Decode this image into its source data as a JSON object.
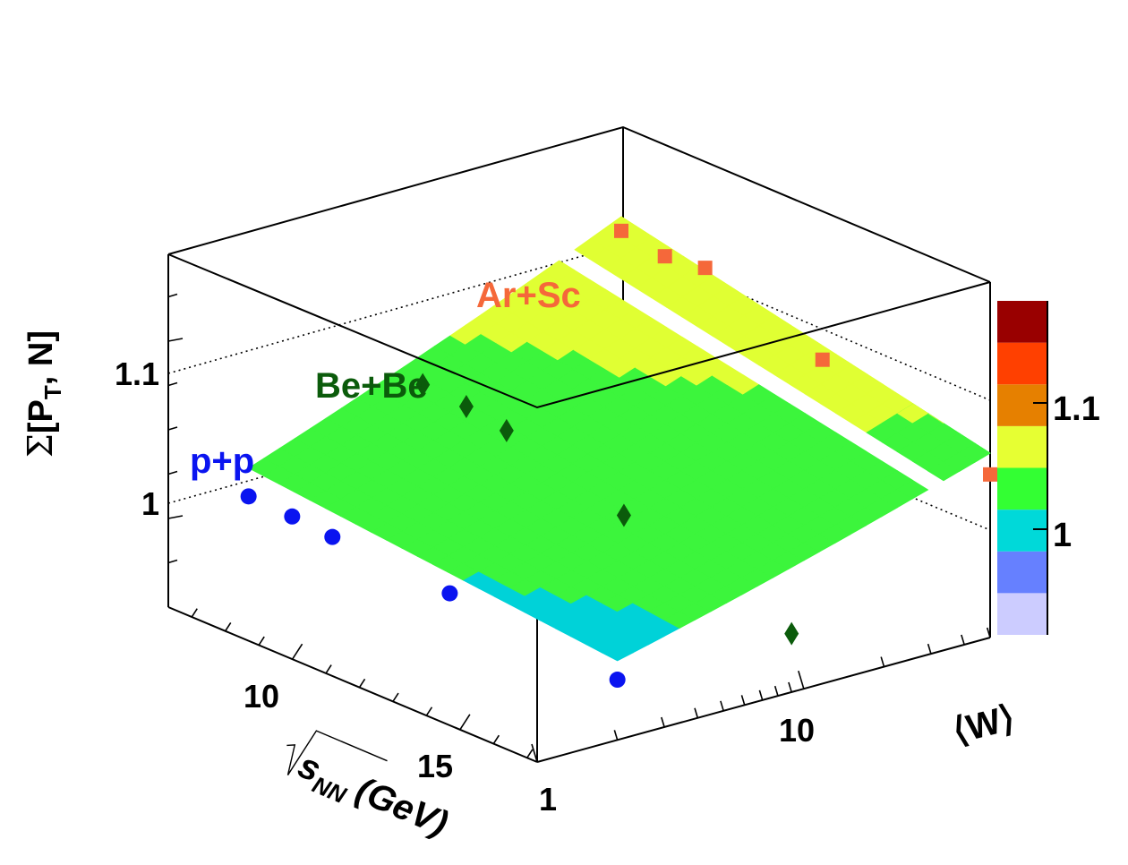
{
  "chart_data": {
    "type": "surface3d",
    "zlabel_sigma": "Σ",
    "zlabel_main": "[P",
    "zlabel_sub": "T",
    "zlabel_tail": ", N]",
    "xlabel_var": "s",
    "xlabel_sub": "NN",
    "xlabel_unit": "(GeV)",
    "ylabel": "⟨W⟩",
    "x_ticks": [
      "10",
      "15"
    ],
    "y_ticks": [
      "1",
      "10"
    ],
    "z_ticks": [
      "1",
      "1.1"
    ],
    "colorbar_ticks": [
      "1",
      "1.1"
    ],
    "colorbar_colors": [
      "#ccccff",
      "#6680ff",
      "#00d9d9",
      "#33ff33",
      "#e6ff33",
      "#e68000",
      "#ff4000",
      "#990000"
    ],
    "surface_colors": {
      "low": "#00d2d8",
      "mid": "#3cf53c",
      "high": "#e0ff33"
    },
    "x_range": [
      6.3,
      17.3
    ],
    "y_range": [
      1,
      50
    ],
    "z_range": [
      0.95,
      1.15
    ],
    "series": [
      {
        "name": "p+p",
        "color": "#0a14f0",
        "marker": "circle",
        "points": [
          [
            6.3,
            2,
            1.0
          ],
          [
            7.6,
            2,
            0.999
          ],
          [
            8.8,
            2,
            0.997
          ],
          [
            12.3,
            2,
            0.993
          ],
          [
            17.3,
            2,
            0.984
          ]
        ]
      },
      {
        "name": "Be+Be",
        "color": "#0b5b0b",
        "marker": "diamond",
        "points": [
          [
            6.3,
            9,
            1.036
          ],
          [
            7.6,
            9,
            1.034
          ],
          [
            8.8,
            9,
            1.03
          ],
          [
            12.3,
            9,
            1.01
          ],
          [
            17.3,
            9,
            0.983
          ]
        ]
      },
      {
        "name": "Ar+Sc",
        "color": "#f5683a",
        "marker": "square",
        "points": [
          [
            6.3,
            50,
            1.092
          ],
          [
            7.6,
            50,
            1.088
          ],
          [
            8.8,
            50,
            1.091
          ],
          [
            12.3,
            50,
            1.067
          ],
          [
            17.3,
            50,
            1.042
          ]
        ]
      }
    ]
  }
}
